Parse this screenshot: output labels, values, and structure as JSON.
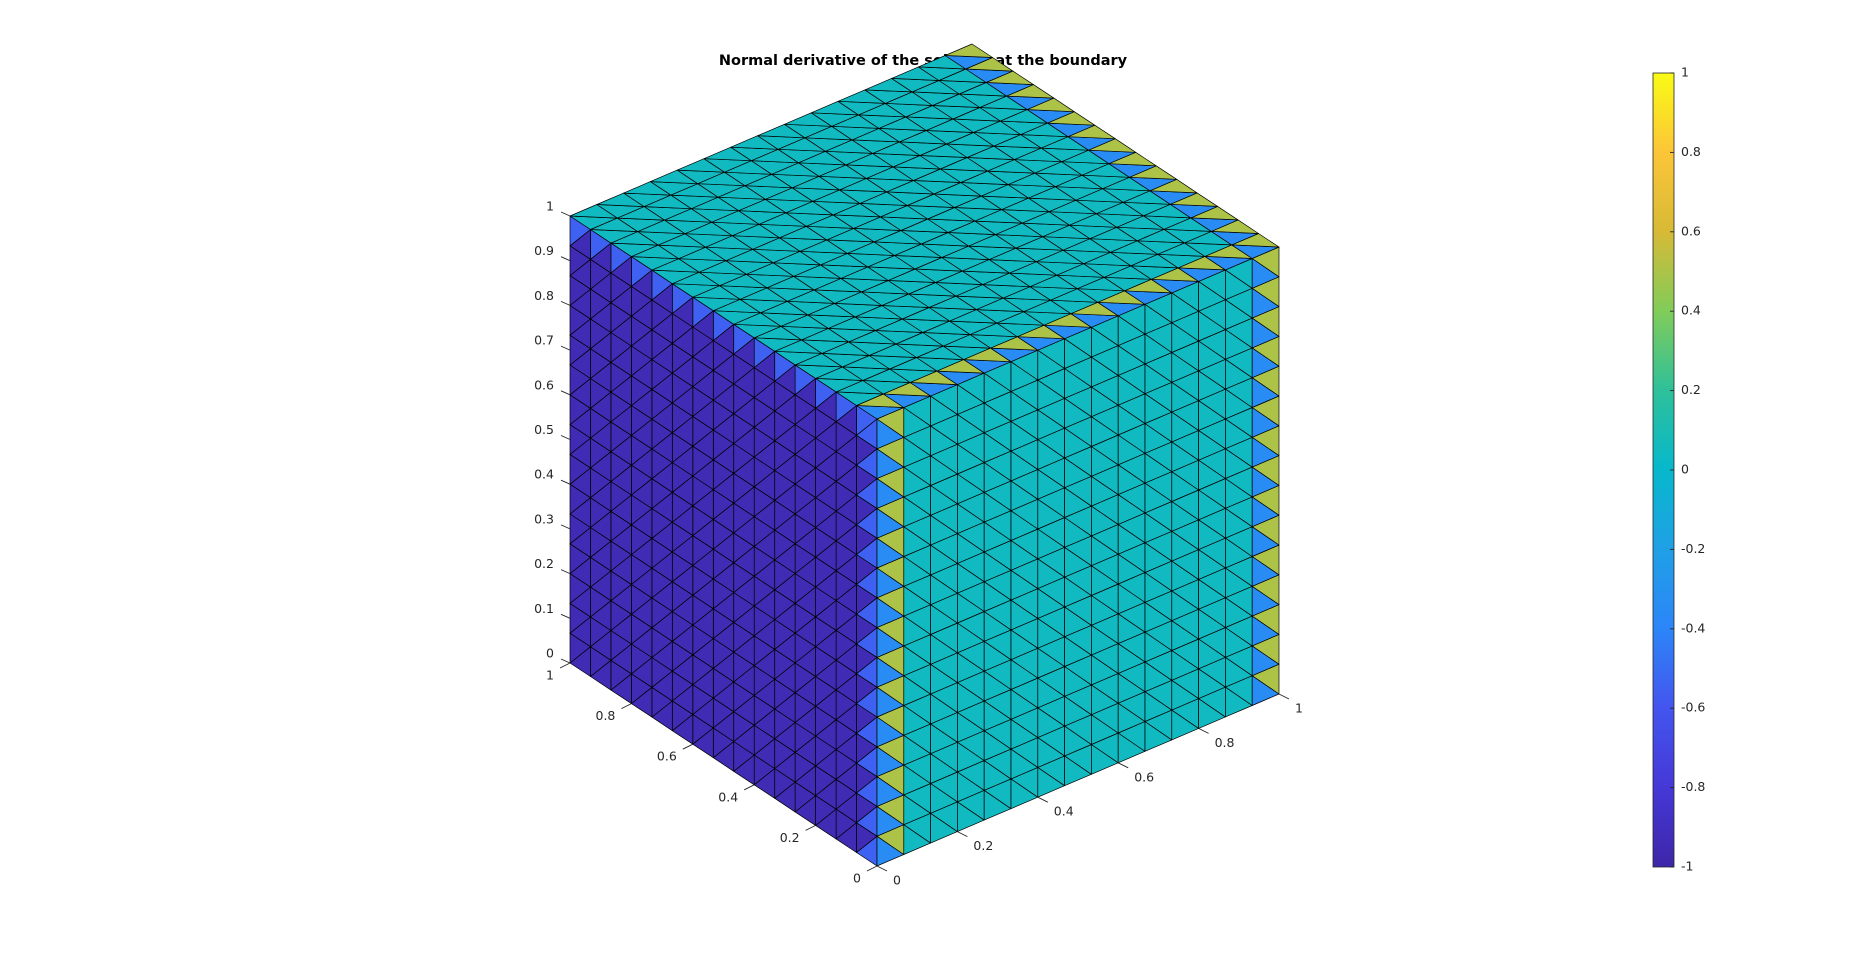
{
  "chart_data": {
    "type": "surface3d",
    "title": "Normal derivative of the solution at the boundary",
    "xlabel": "",
    "ylabel": "",
    "zlabel": "",
    "xlim": [
      0,
      1
    ],
    "ylim": [
      0,
      1
    ],
    "zlim": [
      0,
      1
    ],
    "grid_divisions": 15,
    "axes": {
      "x_ticks": [
        "0",
        "0.2",
        "0.4",
        "0.6",
        "0.8",
        "1"
      ],
      "y_ticks": [
        "0",
        "0.2",
        "0.4",
        "0.6",
        "0.8",
        "1"
      ],
      "z_ticks": [
        "0",
        "0.1",
        "0.2",
        "0.3",
        "0.4",
        "0.5",
        "0.6",
        "0.7",
        "0.8",
        "0.9",
        "1"
      ]
    },
    "faces": [
      {
        "name": "left face (x = 0)",
        "value": -0.95,
        "edge_value": -0.55,
        "edge_value_2": 0.3
      },
      {
        "name": "right face (y = 0)",
        "value": 0.05,
        "edge_value": -0.35,
        "edge_value_2": 0.5
      },
      {
        "name": "top face (z = 1)",
        "value": 0.05,
        "edge_value": -0.35,
        "edge_value_2": 0.5
      }
    ],
    "colorbar": {
      "colormap": "parula",
      "range": [
        -1,
        1
      ],
      "ticks": [
        "1",
        "0.8",
        "0.6",
        "0.4",
        "0.2",
        "0",
        "-0.2",
        "-0.4",
        "-0.6",
        "-0.8",
        "-1"
      ],
      "location": "right"
    }
  }
}
